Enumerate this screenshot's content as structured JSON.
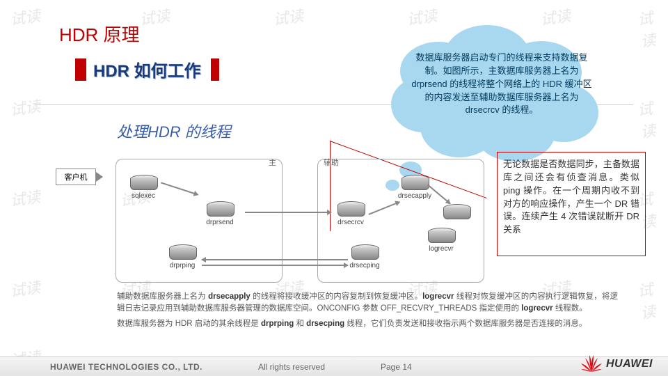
{
  "title": "HDR 原理",
  "subtitle": "HDR 如何工作",
  "section_label": "处理HDR 的线程",
  "watermark_text": "试读",
  "cloud_text": "数据库服务器启动专门的线程来支持数据复制。如图所示，主数据库服务器上名为 drprsend 的线程将整个网络上的 HDR 缓冲区的内容发送至辅助数据库服务器上名为 drsecrcv 的线程。",
  "sidebox_text": "无论数据是否数据同步，主备数据库之间还会有侦查消息。类似 ping 操作。在一个周期内收不到对方的响应操作，产生一个 DR 错误。连续产生 4 次错误就断开 DR 关系",
  "diagram": {
    "client_label": "客户机",
    "primary_label": "主",
    "secondary_label": "辅助",
    "threads": {
      "sqlexec": "sqlexec",
      "drprsend": "drprsend",
      "drprping": "drprping",
      "drsecrcv": "drsecrcv",
      "drsecapply": "drsecapply",
      "drsecping": "drsecping",
      "logrecvr": "logrecvr"
    }
  },
  "body_p1": "辅助数据库服务器上名为 <b>drsecapply</b> 的线程将接收缓冲区的内容复制到恢复缓冲区。<b>logrecvr</b> 线程对恢复缓冲区的内容执行逻辑恢复，将逻辑日志记录应用到辅助数据库服务器管理的数据库空间。ONCONFIG 参数 OFF_RECVRY_THREADS 指定使用的 <b>logrecvr</b> 线程数。",
  "body_p2": "数据库服务器为 HDR 启动的其余线程是 <b>drprping</b> 和 <b>drsecping</b> 线程，它们负责发送和接收指示两个数据库服务器是否连接的消息。",
  "footer": {
    "company": "HUAWEI TECHNOLOGIES CO., LTD.",
    "rights": "All rights reserved",
    "page": "Page 14",
    "logo": "HUAWEI"
  },
  "colors": {
    "accent_red": "#c00000",
    "title_blue": "#1a3a7a",
    "section_blue": "#3a5da8",
    "cloud_fill": "#a8d8ef",
    "cloud_text": "#003a5c",
    "logo_red": "#e30613"
  }
}
